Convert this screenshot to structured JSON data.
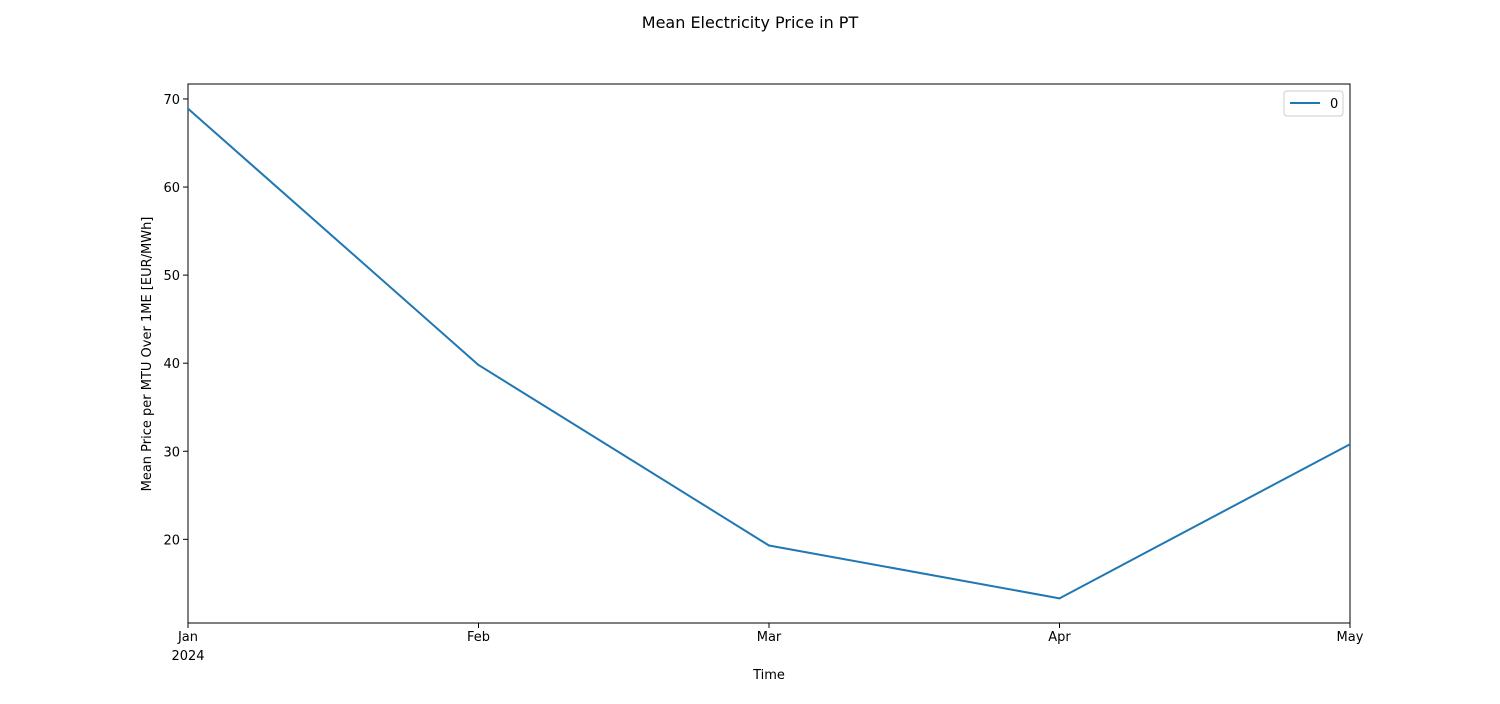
{
  "chart_data": {
    "type": "line",
    "title": "Mean Electricity Price in PT",
    "xlabel": "Time",
    "ylabel": "Mean Price per MTU Over 1ME [EUR/MWh]",
    "x": [
      "2024-01",
      "2024-02",
      "2024-03",
      "2024-04",
      "2024-05"
    ],
    "x_tick_labels": [
      "Jan",
      "Feb",
      "Mar",
      "Apr",
      "May"
    ],
    "x_tick_sublabel": "2024",
    "series": [
      {
        "name": "0",
        "color": "#1f77b4",
        "values": [
          68.9,
          39.8,
          19.3,
          13.3,
          30.8
        ]
      }
    ],
    "ylim": [
      10.5,
      71.7
    ],
    "y_ticks": [
      20,
      30,
      40,
      50,
      60,
      70
    ],
    "grid": false,
    "legend_position": "top-right"
  }
}
